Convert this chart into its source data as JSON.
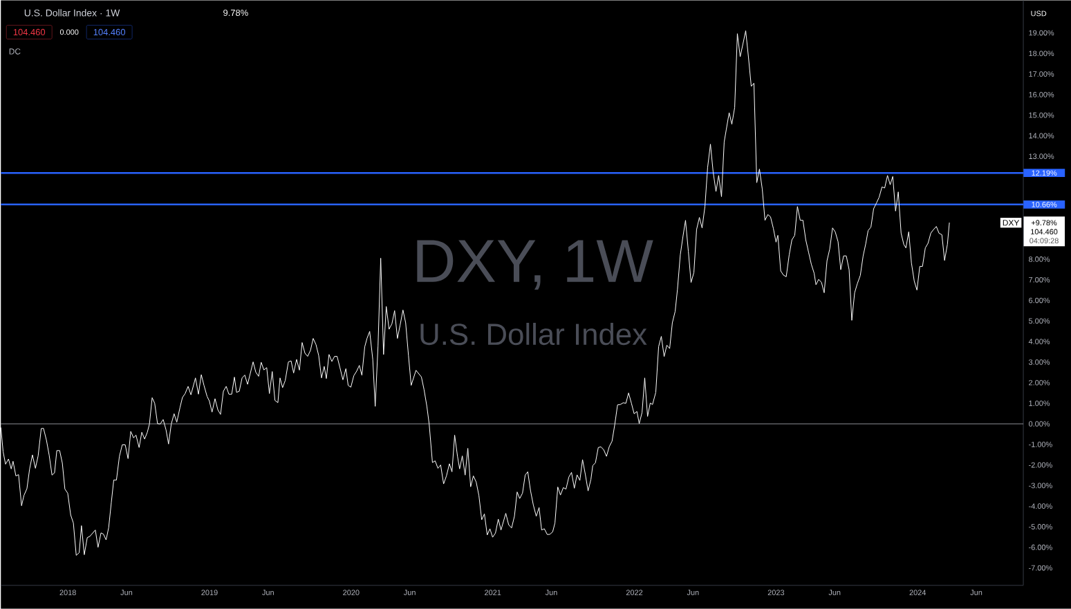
{
  "chart_data": {
    "type": "line",
    "title": "U.S. Dollar Index · 1W",
    "color": "#ffffff",
    "line_style": "solid",
    "x": [
      2017.527,
      2017.543,
      2017.56,
      2017.581,
      2017.6,
      2017.613,
      2017.633,
      2017.652,
      2017.673,
      2017.69,
      2017.711,
      2017.73,
      2017.75,
      2017.771,
      2017.79,
      2017.812,
      2017.828,
      2017.849,
      2017.868,
      2017.888,
      2017.906,
      2017.922,
      2017.942,
      2017.961,
      2017.979,
      2017.999,
      2018.02,
      2018.039,
      2018.059,
      2018.08,
      2018.096,
      2018.116,
      2018.137,
      2018.155,
      2018.194,
      2018.213,
      2018.234,
      2018.251,
      2018.27,
      2018.288,
      2018.307,
      2018.324,
      2018.343,
      2018.364,
      2018.384,
      2018.405,
      2018.425,
      2018.444,
      2018.464,
      2018.481,
      2018.503,
      2018.522,
      2018.542,
      2018.561,
      2018.576,
      2018.595,
      2018.613,
      2018.633,
      2018.652,
      2018.673,
      2018.693,
      2018.711,
      2018.73,
      2018.75,
      2018.769,
      2018.792,
      2018.809,
      2018.828,
      2018.849,
      2018.869,
      2018.901,
      2018.922,
      2018.942,
      2018.961,
      2018.983,
      2018.999,
      2019.018,
      2019.039,
      2019.059,
      2019.078,
      2019.098,
      2019.118,
      2019.137,
      2019.157,
      2019.176,
      2019.191,
      2019.21,
      2019.23,
      2019.249,
      2019.269,
      2019.308,
      2019.327,
      2019.347,
      2019.365,
      2019.384,
      2019.404,
      2019.423,
      2019.443,
      2019.462,
      2019.483,
      2019.498,
      2019.516,
      2019.535,
      2019.557,
      2019.576,
      2019.594,
      2019.615,
      2019.635,
      2019.654,
      2019.674,
      2019.693,
      2019.713,
      2019.732,
      2019.752,
      2019.771,
      2019.791,
      2019.81,
      2019.825,
      2019.844,
      2019.864,
      2019.883,
      2019.901,
      2019.921,
      2019.942,
      2019.963,
      2019.979,
      2019.998,
      2020.019,
      2020.039,
      2020.058,
      2020.076,
      2020.096,
      2020.112,
      2020.131,
      2020.153,
      2020.17,
      2020.19,
      2020.209,
      2020.229,
      2020.248,
      2020.268,
      2020.288,
      2020.307,
      2020.327,
      2020.346,
      2020.366,
      2020.385,
      2020.405,
      2020.424,
      2020.458,
      2020.496,
      2020.515,
      2020.535,
      2020.551,
      2020.574,
      2020.593,
      2020.613,
      2020.632,
      2020.653,
      2020.673,
      2020.694,
      2020.712,
      2020.731,
      2020.751,
      2020.766,
      2020.785,
      2020.805,
      2020.824,
      2020.844,
      2020.863,
      2020.883,
      2020.902,
      2020.922,
      2020.941,
      2020.961,
      2020.98,
      2020.999,
      2021.019,
      2021.039,
      2021.058,
      2021.092,
      2021.112,
      2021.133,
      2021.153,
      2021.172,
      2021.19,
      2021.21,
      2021.229,
      2021.247,
      2021.267,
      2021.286,
      2021.307,
      2021.327,
      2021.345,
      2021.364,
      2021.385,
      2021.403,
      2021.423,
      2021.439,
      2021.459,
      2021.478,
      2021.498,
      2021.517,
      2021.537,
      2021.556,
      2021.576,
      2021.595,
      2021.615,
      2021.634,
      2021.654,
      2021.673,
      2021.693,
      2021.706,
      2021.725,
      2021.745,
      2021.764,
      2021.784,
      2021.803,
      2021.823,
      2021.842,
      2021.862,
      2021.881,
      2021.901,
      2021.92,
      2021.94,
      2021.959,
      2021.979,
      2021.998,
      2022.018,
      2022.034,
      2022.054,
      2022.073,
      2022.093,
      2022.112,
      2022.128,
      2022.151,
      2022.171,
      2022.19,
      2022.21,
      2022.229,
      2022.249,
      2022.268,
      2022.288,
      2022.304,
      2022.324,
      2022.343,
      2022.361,
      2022.381,
      2022.4,
      2022.42,
      2022.439,
      2022.459,
      2022.478,
      2022.498,
      2022.517,
      2022.537,
      2022.556,
      2022.576,
      2022.595,
      2022.615,
      2022.634,
      2022.649,
      2022.669,
      2022.688,
      2022.708,
      2022.727,
      2022.747,
      2022.766,
      2022.786,
      2022.805,
      2022.825,
      2022.844,
      2022.864,
      2022.883,
      2022.903,
      2022.922,
      2022.942,
      2022.961,
      2022.981,
      2023.0,
      2023.013,
      2023.033,
      2023.052,
      2023.072,
      2023.093,
      2023.112,
      2023.132,
      2023.151,
      2023.171,
      2023.19,
      2023.21,
      2023.23,
      2023.249,
      2023.269,
      2023.282,
      2023.301,
      2023.321,
      2023.34,
      2023.36,
      2023.379,
      2023.399,
      2023.418,
      2023.438,
      2023.457,
      2023.477,
      2023.496,
      2023.516,
      2023.535,
      2023.555,
      2023.574,
      2023.595,
      2023.615,
      2023.634,
      2023.65,
      2023.67,
      2023.689,
      2023.709,
      2023.728,
      2023.748,
      2023.767,
      2023.787,
      2023.806,
      2023.824,
      2023.844,
      2023.863,
      2023.883,
      2023.902,
      2023.917,
      2023.937,
      2023.956,
      2023.976,
      2023.995,
      2024.015,
      2024.034,
      2024.054,
      2024.073,
      2024.093,
      2024.112,
      2024.132,
      2024.151,
      2024.171,
      2024.19,
      2024.21,
      2024.224
    ],
    "values": [
      -0.18,
      -1.36,
      -1.96,
      -1.71,
      -2.19,
      -1.82,
      -2.53,
      -2.47,
      -3.98,
      -3.48,
      -3.15,
      -2.19,
      -1.51,
      -2.16,
      -1.56,
      -0.23,
      -0.22,
      -0.8,
      -1.52,
      -2.49,
      -2.38,
      -1.3,
      -1.3,
      -1.91,
      -3.17,
      -3.37,
      -4.43,
      -4.82,
      -6.39,
      -6.26,
      -4.95,
      -6.36,
      -5.53,
      -5.47,
      -5.16,
      -6.0,
      -5.3,
      -5.36,
      -5.64,
      -5.05,
      -3.81,
      -2.73,
      -2.73,
      -1.58,
      -1.02,
      -1.02,
      -1.69,
      -0.37,
      -0.68,
      -0.55,
      -1.15,
      -0.41,
      -0.74,
      -0.41,
      -0.01,
      1.27,
      1.0,
      0.01,
      -0.01,
      0.21,
      -0.29,
      -0.98,
      -0.01,
      0.49,
      0.08,
      0.8,
      1.28,
      1.47,
      1.82,
      1.41,
      2.23,
      1.44,
      2.39,
      1.87,
      1.33,
      1.11,
      0.57,
      1.22,
      0.68,
      0.46,
      1.58,
      1.82,
      1.44,
      1.44,
      2.27,
      1.53,
      1.58,
      2.23,
      2.37,
      1.92,
      3.01,
      2.51,
      2.31,
      2.99,
      2.62,
      2.73,
      1.47,
      2.54,
      1.14,
      1.03,
      2.23,
      1.76,
      2.11,
      3.01,
      3.06,
      2.47,
      3.13,
      2.61,
      3.95,
      3.43,
      3.28,
      3.57,
      4.15,
      3.85,
      3.32,
      2.23,
      2.79,
      2.2,
      3.37,
      3.03,
      3.28,
      3.28,
      2.73,
      2.14,
      2.68,
      1.87,
      1.78,
      2.34,
      2.56,
      2.84,
      2.36,
      3.74,
      4.15,
      4.49,
      3.12,
      0.85,
      3.79,
      8.05,
      3.37,
      5.7,
      4.6,
      4.86,
      5.5,
      4.15,
      4.8,
      5.53,
      4.91,
      3.31,
      1.87,
      2.6,
      2.28,
      1.66,
      0.84,
      -0.01,
      -1.88,
      -1.8,
      -2.16,
      -2.0,
      -2.92,
      -2.53,
      -1.94,
      -2.33,
      -0.55,
      -1.58,
      -2.19,
      -1.56,
      -2.49,
      -1.19,
      -3.06,
      -2.53,
      -2.83,
      -3.48,
      -4.66,
      -4.38,
      -5.4,
      -5.1,
      -5.51,
      -5.31,
      -4.63,
      -5.16,
      -4.35,
      -4.9,
      -5.06,
      -4.49,
      -3.31,
      -3.63,
      -3.37,
      -2.49,
      -2.33,
      -3.26,
      -3.93,
      -4.49,
      -4.07,
      -5.16,
      -5.1,
      -5.38,
      -5.37,
      -5.25,
      -4.82,
      -3.07,
      -3.46,
      -3.1,
      -3.17,
      -2.59,
      -2.36,
      -3.13,
      -2.48,
      -2.75,
      -1.74,
      -2.48,
      -3.26,
      -2.7,
      -2.03,
      -1.89,
      -1.15,
      -1.12,
      -1.27,
      -1.58,
      -1.1,
      -0.85,
      -0.01,
      0.92,
      0.94,
      1.02,
      1.0,
      1.5,
      1.0,
      0.49,
      0.6,
      0.01,
      0.55,
      2.23,
      0.36,
      1.01,
      0.94,
      1.53,
      3.75,
      4.25,
      3.27,
      3.82,
      3.66,
      4.91,
      5.47,
      6.53,
      8.21,
      9.11,
      9.89,
      8.38,
      6.87,
      7.35,
      9.44,
      10.03,
      9.52,
      10.56,
      12.46,
      13.59,
      12.24,
      11.29,
      12.07,
      11.04,
      13.7,
      14.31,
      15.12,
      14.56,
      15.37,
      18.96,
      17.84,
      18.45,
      19.1,
      17.84,
      16.4,
      16.55,
      11.72,
      12.38,
      11.4,
      9.89,
      10.17,
      10.06,
      9.5,
      8.83,
      9.16,
      7.43,
      7.23,
      7.15,
      8.21,
      8.94,
      9.16,
      10.56,
      9.89,
      9.89,
      8.94,
      8.33,
      7.76,
      7.32,
      6.76,
      7.02,
      6.87,
      6.37,
      7.93,
      8.49,
      9.52,
      9.33,
      8.85,
      7.49,
      8.16,
      8.16,
      7.49,
      5.03,
      6.37,
      6.81,
      7.21,
      8.16,
      8.77,
      9.39,
      9.56,
      10.45,
      10.73,
      11.01,
      11.51,
      11.46,
      12.07,
      11.62,
      12.02,
      10.34,
      11.27,
      9.27,
      8.72,
      8.55,
      9.33,
      7.82,
      6.93,
      6.5,
      7.65,
      7.65,
      8.55,
      8.77,
      9.27,
      9.44,
      9.59,
      9.26,
      9.19,
      7.94,
      8.72,
      9.78
    ],
    "xlim": [
      2017.527,
      2024.746
    ],
    "ylim": [
      -7.85,
      20.58
    ],
    "xticks": [
      2018,
      {
        "value": 2018.414,
        "label": "Jun"
      },
      2019,
      {
        "value": 2019.414,
        "label": "Jun"
      },
      2020,
      {
        "value": 2020.414,
        "label": "Jun"
      },
      2021,
      {
        "value": 2021.414,
        "label": "Jun"
      },
      2022,
      {
        "value": 2022.414,
        "label": "Jun"
      },
      2023,
      {
        "value": 2023.414,
        "label": "Jun"
      },
      2024,
      {
        "value": 2024.414,
        "label": "Jun"
      }
    ],
    "yticks": [
      {
        "value": -7,
        "label": "-7.00%"
      },
      {
        "value": -6,
        "label": "-6.00%"
      },
      {
        "value": -5,
        "label": "-5.00%"
      },
      {
        "value": -4,
        "label": "-4.00%"
      },
      {
        "value": -3,
        "label": "-3.00%"
      },
      {
        "value": -2,
        "label": "-2.00%"
      },
      {
        "value": -1,
        "label": "-1.00%"
      },
      {
        "value": 0,
        "label": "0.00%"
      },
      {
        "value": 1,
        "label": "1.00%"
      },
      {
        "value": 2,
        "label": "2.00%"
      },
      {
        "value": 3,
        "label": "3.00%"
      },
      {
        "value": 4,
        "label": "4.00%"
      },
      {
        "value": 5,
        "label": "5.00%"
      },
      {
        "value": 6,
        "label": "6.00%"
      },
      {
        "value": 7,
        "label": "7.00%"
      },
      {
        "value": 8,
        "label": "8.00%"
      },
      {
        "value": 13,
        "label": "13.00%"
      },
      {
        "value": 14,
        "label": "14.00%"
      },
      {
        "value": 15,
        "label": "15.00%"
      },
      {
        "value": 16,
        "label": "16.00%"
      },
      {
        "value": 17,
        "label": "17.00%"
      },
      {
        "value": 18,
        "label": "18.00%"
      },
      {
        "value": 19,
        "label": "19.00%"
      }
    ],
    "ref_lines": [
      {
        "axis": "y",
        "value": 12.19,
        "label": "12.19%",
        "color": "#2962ff"
      },
      {
        "axis": "y",
        "value": 10.66,
        "label": "10.66%",
        "color": "#2962ff"
      },
      {
        "axis": "y",
        "value": 0,
        "color": "#b2b5be"
      }
    ],
    "annotations": [
      "9.78%",
      "104.460",
      "0.000",
      "104.460",
      "DC",
      "USD",
      "DXY, 1W",
      "U.S. Dollar Index",
      "DXY",
      "+9.78%",
      "104.460",
      "04:09:28"
    ]
  }
}
